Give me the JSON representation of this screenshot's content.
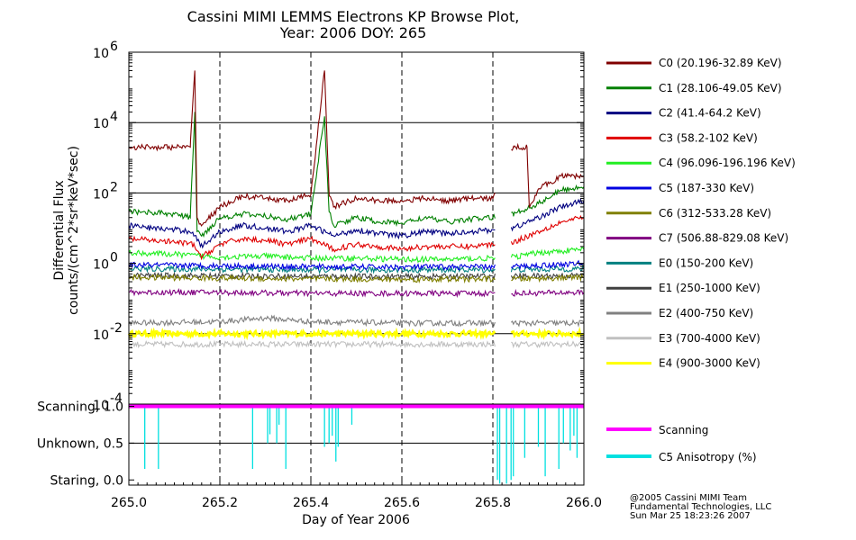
{
  "title": {
    "line1": "Cassini MIMI LEMMS Electrons KP Browse Plot,",
    "line2": "Year: 2006 DOY: 265"
  },
  "credits": {
    "line1": "@2005 Cassini MIMI Team",
    "line2": "Fundamental Technologies, LLC",
    "line3": "Sun Mar 25 18:23:26 2007"
  },
  "colors": {
    "C0": "#800000",
    "C1": "#008000",
    "C2": "#000080",
    "C3": "#e00000",
    "C4": "#22ee22",
    "C5": "#0000e0",
    "C6": "#808000",
    "C7": "#800080",
    "E0": "#008080",
    "E1": "#404040",
    "E2": "#808080",
    "E3": "#c0c0c0",
    "E4": "#ffff00",
    "scanning": "#ff00ff",
    "anisotropy": "#00e0e0"
  },
  "chart_data": [
    {
      "type": "line",
      "ylabel_line1": "Differential Flux",
      "ylabel_line2": "counts/(cm^2*sr*keV*sec)",
      "y_scale": "log",
      "ylim": [
        0.0001,
        1000000
      ],
      "y_ticks": [
        {
          "value": 0.0001,
          "base": "10",
          "exp": "-4"
        },
        {
          "value": 0.01,
          "base": "10",
          "exp": "-2"
        },
        {
          "value": 1,
          "base": "10",
          "exp": "0"
        },
        {
          "value": 100,
          "base": "10",
          "exp": "2"
        },
        {
          "value": 10000,
          "base": "10",
          "exp": "4"
        },
        {
          "value": 1000000,
          "base": "10",
          "exp": "6"
        }
      ],
      "xlim": [
        265.0,
        266.0
      ],
      "grid_x_dashed": [
        265.2,
        265.4,
        265.6,
        265.8
      ],
      "grid_y_solid": [
        0.01,
        100,
        10000
      ],
      "legend_position": "right",
      "data_gaps": [
        [
          265.02,
          265.0
        ],
        [
          265.805,
          265.84
        ]
      ],
      "series": [
        {
          "key": "C0",
          "name": "C0 (20.196-32.89 KeV)",
          "x": [
            265.0,
            265.05,
            265.1,
            265.135,
            265.145,
            265.15,
            265.16,
            265.2,
            265.25,
            265.3,
            265.35,
            265.4,
            265.43,
            265.44,
            265.45,
            265.5,
            265.55,
            265.6,
            265.65,
            265.7,
            265.75,
            265.8,
            265.845,
            265.85,
            265.875,
            265.88,
            265.9,
            265.95,
            266.0
          ],
          "y": [
            2000,
            2000,
            2000,
            2000,
            300000,
            20,
            12,
            40,
            80,
            70,
            60,
            90,
            300000,
            100,
            40,
            70,
            60,
            60,
            70,
            60,
            70,
            70,
            2000,
            2000,
            2000,
            40,
            130,
            300,
            300
          ]
        },
        {
          "key": "C1",
          "name": "C1 (28.106-49.05 KeV)",
          "x": [
            265.0,
            265.05,
            265.1,
            265.135,
            265.145,
            265.15,
            265.16,
            265.2,
            265.25,
            265.3,
            265.35,
            265.4,
            265.43,
            265.44,
            265.45,
            265.5,
            265.55,
            265.6,
            265.65,
            265.7,
            265.75,
            265.8,
            265.845,
            265.9,
            265.95,
            266.0
          ],
          "y": [
            30,
            28,
            25,
            20,
            20000,
            8,
            6,
            20,
            25,
            22,
            18,
            25,
            15000,
            30,
            12,
            20,
            15,
            14,
            20,
            15,
            18,
            20,
            25,
            50,
            120,
            150
          ]
        },
        {
          "key": "C2",
          "name": "C2 (41.4-64.2 KeV)",
          "x": [
            265.0,
            265.05,
            265.1,
            265.14,
            265.16,
            265.2,
            265.25,
            265.3,
            265.35,
            265.4,
            265.45,
            265.5,
            265.55,
            265.6,
            265.65,
            265.7,
            265.75,
            265.8,
            265.845,
            265.9,
            265.95,
            266.0
          ],
          "y": [
            12,
            10,
            9,
            8,
            3,
            8,
            12,
            10,
            8,
            12,
            6,
            9,
            7,
            6,
            8,
            7,
            8,
            9,
            10,
            20,
            40,
            60
          ]
        },
        {
          "key": "C3",
          "name": "C3 (58.2-102 KeV)",
          "x": [
            265.0,
            265.05,
            265.1,
            265.14,
            265.16,
            265.2,
            265.25,
            265.3,
            265.35,
            265.4,
            265.45,
            265.5,
            265.55,
            265.6,
            265.65,
            265.7,
            265.75,
            265.8,
            265.845,
            265.9,
            265.95,
            266.0
          ],
          "y": [
            5,
            4.5,
            4,
            3.5,
            1.5,
            3.5,
            5,
            4.5,
            3.5,
            5,
            2.5,
            3.5,
            3,
            2.5,
            3,
            3,
            3,
            3.5,
            4,
            8,
            15,
            20
          ]
        },
        {
          "key": "C4",
          "name": "C4 (96.096-196.196 KeV)",
          "x": [
            265.0,
            265.1,
            265.2,
            265.3,
            265.4,
            265.5,
            265.6,
            265.7,
            265.8,
            265.845,
            265.9,
            266.0
          ],
          "y": [
            2,
            1.8,
            1.5,
            1.6,
            1.4,
            1.4,
            1.3,
            1.3,
            1.4,
            1.5,
            2,
            2.5
          ]
        },
        {
          "key": "C5",
          "name": "C5 (187-330 KeV)",
          "x": [
            265.0,
            265.2,
            265.4,
            265.6,
            265.8,
            265.845,
            266.0
          ],
          "y": [
            0.9,
            0.85,
            0.8,
            0.78,
            0.8,
            0.8,
            1
          ]
        },
        {
          "key": "C6",
          "name": "C6 (312-533.28 KeV)",
          "x": [
            265.0,
            265.2,
            265.4,
            265.6,
            265.8,
            265.845,
            266.0
          ],
          "y": [
            0.4,
            0.38,
            0.36,
            0.35,
            0.36,
            0.36,
            0.4
          ]
        },
        {
          "key": "C7",
          "name": "C7 (506.88-829.08 KeV)",
          "x": [
            265.0,
            265.2,
            265.4,
            265.6,
            265.8,
            265.845,
            266.0
          ],
          "y": [
            0.15,
            0.15,
            0.14,
            0.14,
            0.14,
            0.14,
            0.15
          ]
        },
        {
          "key": "E0",
          "name": "E0 (150-200 KeV)",
          "x": [
            265.0,
            265.2,
            265.4,
            265.6,
            265.8,
            265.845,
            266.0
          ],
          "y": [
            0.7,
            0.68,
            0.65,
            0.65,
            0.66,
            0.66,
            0.7
          ]
        },
        {
          "key": "E1",
          "name": "E1 (250-1000 KeV)",
          "x": [
            265.0,
            265.2,
            265.4,
            265.6,
            265.8,
            265.845,
            266.0
          ],
          "y": [
            0.45,
            0.44,
            0.43,
            0.42,
            0.43,
            0.43,
            0.45
          ]
        },
        {
          "key": "E2",
          "name": "E2 (400-750 KeV)",
          "x": [
            265.0,
            265.2,
            265.3,
            265.4,
            265.6,
            265.8,
            265.845,
            266.0
          ],
          "y": [
            0.02,
            0.022,
            0.028,
            0.022,
            0.02,
            0.02,
            0.02,
            0.02
          ]
        },
        {
          "key": "E3",
          "name": "E3 (700-4000 KeV)",
          "x": [
            265.0,
            265.2,
            265.4,
            265.6,
            265.8,
            265.845,
            266.0
          ],
          "y": [
            0.005,
            0.005,
            0.005,
            0.005,
            0.005,
            0.005,
            0.005
          ]
        },
        {
          "key": "E4",
          "name": "E4 (900-3000 KeV)",
          "x": [
            265.0,
            265.2,
            265.4,
            265.6,
            265.8,
            265.845,
            266.0
          ],
          "y": [
            0.01,
            0.01,
            0.01,
            0.01,
            0.01,
            0.01,
            0.01
          ]
        }
      ]
    },
    {
      "type": "line",
      "y_ticks": [
        {
          "value": 1.0,
          "label": "Scanning, 1.0"
        },
        {
          "value": 0.5,
          "label": "Unknown, 0.5"
        },
        {
          "value": 0.0,
          "label": "Staring, 0.0"
        }
      ],
      "ylim": [
        -0.07,
        1.03
      ],
      "xlim": [
        265.0,
        266.0
      ],
      "x_ticks": [
        "265.0",
        "265.2",
        "265.4",
        "265.6",
        "265.8",
        "266.0"
      ],
      "xlabel": "Day of Year 2006",
      "grid_x_dashed": [
        265.2,
        265.4,
        265.6,
        265.8
      ],
      "grid_y_solid": [
        0.5
      ],
      "series": [
        {
          "key": "scanning",
          "name": "Scanning",
          "x": [
            265.0,
            266.0
          ],
          "y": [
            1.0,
            1.0
          ]
        },
        {
          "key": "anisotropy",
          "name": "C5 Anisotropy (%)",
          "spikes": [
            {
              "x": 265.035,
              "min": 0.15
            },
            {
              "x": 265.065,
              "min": 0.15
            },
            {
              "x": 265.272,
              "min": 0.15
            },
            {
              "x": 265.305,
              "min": 0.5
            },
            {
              "x": 265.31,
              "min": 0.62
            },
            {
              "x": 265.325,
              "min": 0.5
            },
            {
              "x": 265.33,
              "min": 0.75
            },
            {
              "x": 265.345,
              "min": 0.15
            },
            {
              "x": 265.43,
              "min": 0.45
            },
            {
              "x": 265.44,
              "min": 0.5
            },
            {
              "x": 265.447,
              "min": 0.6
            },
            {
              "x": 265.455,
              "min": 0.25
            },
            {
              "x": 265.46,
              "min": 0.45
            },
            {
              "x": 265.49,
              "min": 0.75
            },
            {
              "x": 265.81,
              "min": 0.0
            },
            {
              "x": 265.815,
              "min": -0.05
            },
            {
              "x": 265.83,
              "min": -0.05
            },
            {
              "x": 265.84,
              "min": 0.0
            },
            {
              "x": 265.845,
              "min": 0.05
            },
            {
              "x": 265.87,
              "min": 0.3
            },
            {
              "x": 265.9,
              "min": 0.45
            },
            {
              "x": 265.915,
              "min": 0.05
            },
            {
              "x": 265.945,
              "min": 0.15
            },
            {
              "x": 265.955,
              "min": 0.5
            },
            {
              "x": 265.97,
              "min": 0.4
            },
            {
              "x": 265.978,
              "min": 0.6
            },
            {
              "x": 265.985,
              "min": 0.3
            }
          ]
        }
      ]
    }
  ]
}
